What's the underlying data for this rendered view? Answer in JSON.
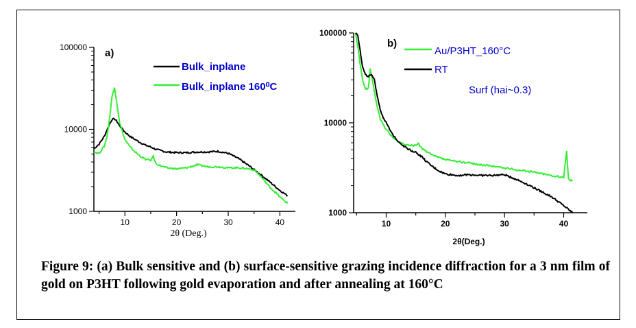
{
  "colors": {
    "black_series": "#000000",
    "green_series": "#33ee33",
    "blue_text": "#0000cc"
  },
  "chart_data": [
    {
      "type": "line",
      "panel_label": "a)",
      "title": "",
      "xlabel": "2θ (Deg.)",
      "ylabel": "",
      "xlim": [
        4,
        43
      ],
      "ylim": [
        1000,
        100000
      ],
      "yscale": "log",
      "x_ticks": [
        10,
        20,
        30,
        40
      ],
      "y_ticks": [
        1000,
        10000,
        100000
      ],
      "x_tick_labels": [
        "10",
        "20",
        "30",
        "40"
      ],
      "y_tick_labels": [
        "1000",
        "10000",
        "100000"
      ],
      "legend_position": "top-right",
      "series": [
        {
          "name": "Bulk_inplane",
          "color": "#000000",
          "x": [
            4,
            5,
            6,
            7,
            7.5,
            8,
            8.5,
            9,
            10,
            11,
            12,
            13,
            14,
            15,
            16,
            17,
            18,
            20,
            22,
            24,
            26,
            28,
            30,
            32,
            34,
            36,
            38,
            40,
            41.5
          ],
          "y": [
            5800,
            6600,
            8200,
            11500,
            13200,
            13400,
            12400,
            11000,
            9300,
            8200,
            7500,
            6900,
            6400,
            6100,
            5700,
            5500,
            5300,
            5200,
            5200,
            5300,
            5300,
            5400,
            5100,
            4400,
            3600,
            2900,
            2300,
            1800,
            1550
          ]
        },
        {
          "name": "Bulk_inplane 160⁰C",
          "color": "#33ee33",
          "x": [
            4,
            5,
            6,
            6.5,
            7,
            7.5,
            8,
            8.5,
            9,
            10,
            11,
            12,
            13,
            14,
            15,
            15.5,
            16,
            18,
            20,
            22,
            24,
            26,
            28,
            30,
            32,
            34,
            35,
            36,
            38,
            40,
            41.5
          ],
          "y": [
            5300,
            5100,
            6200,
            8000,
            13000,
            25000,
            32000,
            20000,
            12000,
            7500,
            6100,
            5300,
            4700,
            4300,
            4200,
            4700,
            3800,
            3400,
            3300,
            3400,
            3700,
            3500,
            3500,
            3400,
            3400,
            3300,
            3200,
            2800,
            2000,
            1500,
            1250
          ]
        }
      ]
    },
    {
      "type": "line",
      "panel_label": "b)",
      "title": "",
      "xlabel": "2θ(Deg.)",
      "ylabel": "",
      "xlim": [
        4.5,
        44
      ],
      "ylim": [
        1000,
        100000
      ],
      "yscale": "log",
      "x_ticks": [
        10,
        20,
        30,
        40
      ],
      "y_ticks": [
        1000,
        10000,
        100000
      ],
      "x_tick_labels": [
        "10",
        "20",
        "30",
        "40"
      ],
      "y_tick_labels": [
        "1000",
        "10000",
        "100000"
      ],
      "legend_position": "top-right",
      "annotation": "Surf (hai~0.3)",
      "series": [
        {
          "name": "Au/P3HT_160°C",
          "color": "#33ee33",
          "x": [
            4.8,
            5.2,
            5.6,
            6,
            6.5,
            7,
            7.3,
            7.6,
            8,
            8.5,
            9,
            9.5,
            10,
            11,
            12,
            13,
            14,
            15,
            15.5,
            16,
            17,
            18,
            20,
            22,
            24,
            26,
            28,
            30,
            32,
            34,
            36,
            38,
            40,
            40.5,
            40.8,
            41,
            41.5
          ],
          "y": [
            100000,
            72000,
            45000,
            30000,
            24000,
            24000,
            40000,
            32000,
            22000,
            15000,
            11000,
            9500,
            8500,
            7000,
            6200,
            5700,
            5600,
            5600,
            5900,
            5200,
            4700,
            4300,
            3900,
            3700,
            3600,
            3400,
            3300,
            3150,
            3000,
            2900,
            2750,
            2600,
            2450,
            4900,
            2400,
            2300,
            2300
          ]
        },
        {
          "name": "RT",
          "color": "#000000",
          "x": [
            4.8,
            5.2,
            5.6,
            6,
            6.5,
            7,
            7.5,
            8,
            8.5,
            9,
            9.5,
            10,
            11,
            12,
            13,
            14,
            15,
            16,
            17,
            18,
            19,
            20,
            22,
            24,
            26,
            28,
            30,
            32,
            34,
            36,
            38,
            40,
            41.5
          ],
          "y": [
            100000,
            95000,
            65000,
            42000,
            34000,
            33000,
            34000,
            30000,
            20000,
            14000,
            11500,
            10000,
            7500,
            6300,
            5500,
            5000,
            4700,
            4200,
            3600,
            3200,
            2900,
            2700,
            2600,
            2650,
            2600,
            2600,
            2650,
            2350,
            2050,
            1750,
            1500,
            1200,
            1000
          ]
        }
      ]
    }
  ],
  "caption": "Figure 9: (a) Bulk sensitive and (b) surface-sensitive grazing incidence diffraction for a 3 nm film of gold on P3HT following gold evaporation and after annealing at 160°C"
}
